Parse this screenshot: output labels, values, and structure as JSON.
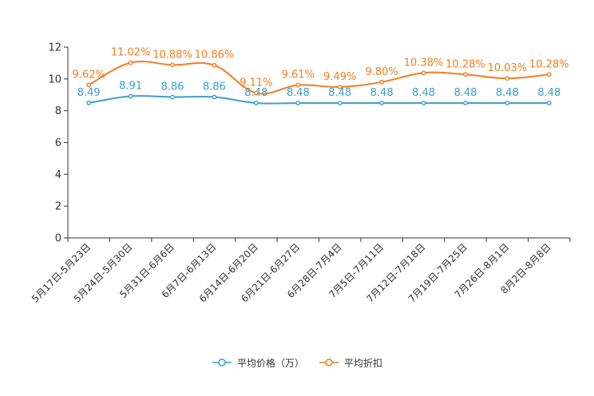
{
  "chart_data": {
    "type": "line",
    "title": "",
    "xlabel": "",
    "ylabel": "",
    "ylim": [
      0,
      12
    ],
    "yticks": [
      "0",
      "2",
      "4",
      "6",
      "8",
      "10",
      "12"
    ],
    "grid": false,
    "legend_position": "bottom-center",
    "categories": [
      "5月17日-5月23日",
      "5月24日-5月30日",
      "5月31日-6月6日",
      "6月7日-6月13日",
      "6月14日-6月20日",
      "6月21日-6月27日",
      "6月28日-7月4日",
      "7月5日-7月11日",
      "7月12日-7月18日",
      "7月19日-7月25日",
      "7月26日-8月1日",
      "8月2日-8月8日"
    ],
    "series": [
      {
        "name": "平均价格（万）",
        "color": "#3a9fcf",
        "values": [
          8.49,
          8.91,
          8.86,
          8.86,
          8.48,
          8.48,
          8.48,
          8.48,
          8.48,
          8.48,
          8.48,
          8.48
        ],
        "labels": [
          "8.49",
          "8.91",
          "8.86",
          "8.86",
          "8.48",
          "8.48",
          "8.48",
          "8.48",
          "8.48",
          "8.48",
          "8.48",
          "8.48"
        ]
      },
      {
        "name": "平均折扣",
        "color": "#f47c20",
        "values": [
          9.62,
          11.02,
          10.88,
          10.86,
          9.11,
          9.61,
          9.49,
          9.8,
          10.38,
          10.28,
          10.03,
          10.28
        ],
        "labels": [
          "9.62%",
          "11.02%",
          "10.88%",
          "10.86%",
          "9.11%",
          "9.61%",
          "9.49%",
          "9.80%",
          "10.38%",
          "10.28%",
          "10.03%",
          "10.28%"
        ]
      }
    ]
  },
  "legend": {
    "price_label": "平均价格（万）",
    "discount_label": "平均折扣",
    "price_color": "#3a9fcf",
    "discount_color": "#f47c20"
  }
}
